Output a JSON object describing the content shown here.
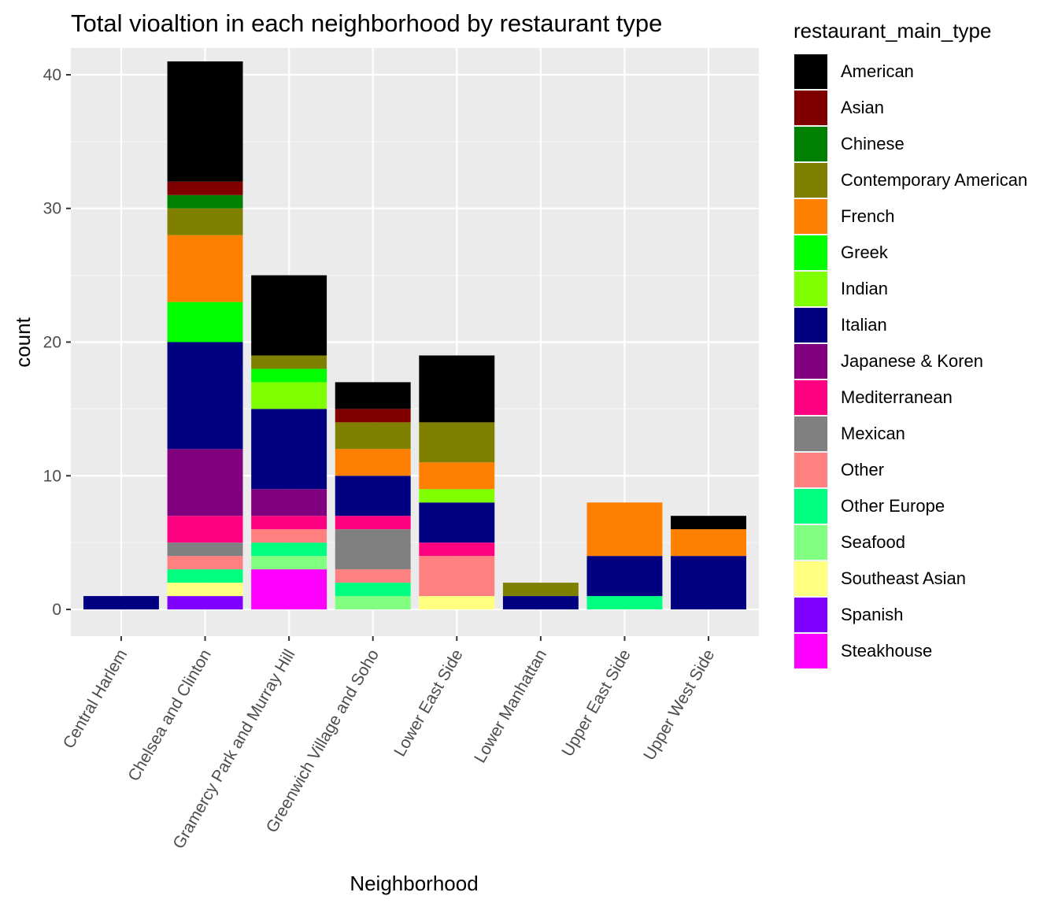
{
  "chart_data": {
    "type": "bar",
    "stacked": true,
    "title": "Total vioaltion in each neighborhood by restaurant type",
    "xlabel": "Neighborhood",
    "ylabel": "count",
    "ylim": [
      -2,
      42
    ],
    "yticks": [
      0,
      10,
      20,
      30,
      40
    ],
    "grid": true,
    "legend_position": "right",
    "legend_title": "restaurant_main_type",
    "categories": [
      "Central Harlem",
      "Chelsea and Clinton",
      "Gramercy Park and Murray Hill",
      "Greenwich Village and Soho",
      "Lower East Side",
      "Lower Manhattan",
      "Upper East Side",
      "Upper West Side"
    ],
    "series": [
      {
        "name": "American",
        "color": "#000000",
        "values": [
          0,
          9,
          6,
          2,
          5,
          0,
          0,
          1
        ]
      },
      {
        "name": "Asian",
        "color": "#800000",
        "values": [
          0,
          1,
          0,
          1,
          0,
          0,
          0,
          0
        ]
      },
      {
        "name": "Chinese",
        "color": "#008000",
        "values": [
          0,
          1,
          0,
          0,
          0,
          0,
          0,
          0
        ]
      },
      {
        "name": "Contemporary American",
        "color": "#808000",
        "values": [
          0,
          2,
          1,
          2,
          3,
          1,
          0,
          0
        ]
      },
      {
        "name": "French",
        "color": "#FF8000",
        "values": [
          0,
          5,
          0,
          2,
          2,
          0,
          4,
          2
        ]
      },
      {
        "name": "Greek",
        "color": "#00FF00",
        "values": [
          0,
          3,
          1,
          0,
          0,
          0,
          0,
          0
        ]
      },
      {
        "name": "Indian",
        "color": "#80FF00",
        "values": [
          0,
          0,
          2,
          0,
          1,
          0,
          0,
          0
        ]
      },
      {
        "name": "Italian",
        "color": "#000080",
        "values": [
          1,
          8,
          6,
          3,
          3,
          1,
          3,
          4
        ]
      },
      {
        "name": "Japanese & Koren",
        "color": "#800080",
        "values": [
          0,
          5,
          2,
          0,
          0,
          0,
          0,
          0
        ]
      },
      {
        "name": "Mediterranean",
        "color": "#FF0080",
        "values": [
          0,
          2,
          1,
          1,
          1,
          0,
          0,
          0
        ]
      },
      {
        "name": "Mexican",
        "color": "#808080",
        "values": [
          0,
          1,
          0,
          3,
          0,
          0,
          0,
          0
        ]
      },
      {
        "name": "Other",
        "color": "#FF8080",
        "values": [
          0,
          1,
          1,
          1,
          3,
          0,
          0,
          0
        ]
      },
      {
        "name": "Other Europe",
        "color": "#00FF80",
        "values": [
          0,
          1,
          1,
          1,
          0,
          0,
          1,
          0
        ]
      },
      {
        "name": "Seafood",
        "color": "#80FF80",
        "values": [
          0,
          0,
          1,
          1,
          0,
          0,
          0,
          0
        ]
      },
      {
        "name": "Southeast Asian",
        "color": "#FFFF80",
        "values": [
          0,
          1,
          0,
          0,
          1,
          0,
          0,
          0
        ]
      },
      {
        "name": "Spanish",
        "color": "#8000FF",
        "values": [
          0,
          1,
          0,
          0,
          0,
          0,
          0,
          0
        ]
      },
      {
        "name": "Steakhouse",
        "color": "#FF00FF",
        "values": [
          0,
          0,
          3,
          0,
          0,
          0,
          0,
          0
        ]
      }
    ],
    "colors": {
      "panel_background": "#EBEBEB",
      "grid_major": "#FFFFFF",
      "grid_minor": "#F5F5F5",
      "tick_text": "#4D4D4D"
    }
  }
}
